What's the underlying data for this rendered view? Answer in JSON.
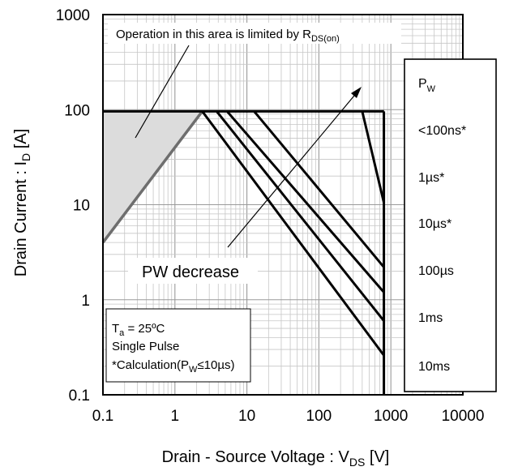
{
  "chart_data": {
    "type": "line",
    "x_scale": "log",
    "y_scale": "log",
    "xlim": [
      0.1,
      10000
    ],
    "ylim": [
      0.1,
      1000
    ],
    "x_ticks": [
      "0.1",
      "1",
      "10",
      "100",
      "1000",
      "10000"
    ],
    "y_ticks": [
      "0.1",
      "1",
      "10",
      "100",
      "1000"
    ],
    "xlabel": {
      "main": "Drain - Source Voltage : V",
      "sub": "DS",
      "unit": " [V]"
    },
    "ylabel": {
      "main": "Drain Current : I",
      "sub": "D",
      "unit": " [A]"
    },
    "grid": true,
    "current_limit": {
      "value": 96,
      "x_from": 0.1,
      "x_to": 800
    },
    "voltage_limit": {
      "value": 800,
      "y_from": 0.1,
      "y_to": 96
    },
    "rds_on_line": {
      "x": [
        0.1,
        2.4
      ],
      "y": [
        4,
        96
      ]
    },
    "pulse_lines": [
      {
        "label": "<100ns*",
        "x": [
          780,
          800
        ],
        "y": [
          96,
          96
        ]
      },
      {
        "label": "1µs*",
        "x": [
          400,
          800
        ],
        "y": [
          96,
          10.5
        ]
      },
      {
        "label": "10µs*",
        "x": [
          12.6,
          800
        ],
        "y": [
          96,
          2.2
        ]
      },
      {
        "label": "100µs",
        "x": [
          5.3,
          800
        ],
        "y": [
          96,
          1.2
        ]
      },
      {
        "label": "1ms",
        "x": [
          3.8,
          800
        ],
        "y": [
          96,
          0.6
        ]
      },
      {
        "label": "10ms",
        "x": [
          2.4,
          800
        ],
        "y": [
          96,
          0.26
        ]
      }
    ],
    "annotations": {
      "rds_limit": {
        "text": "Operation in this area is limited by R",
        "sub": "DS(on)"
      },
      "pw_decrease": "PW decrease",
      "conditions": {
        "line1_main": "T",
        "line1_sub": "a",
        "line1_rest": " = 25ºC",
        "line2": "Single Pulse",
        "line3_main": "*Calculation(P",
        "line3_sub": "W",
        "line3_rest": "≤10µs)"
      }
    },
    "legend": {
      "placement": "right",
      "title_main": "P",
      "title_sub": "W",
      "entries": [
        "<100ns*",
        "1µs*",
        "10µs*",
        "100µs",
        "1ms",
        "10ms"
      ]
    }
  }
}
